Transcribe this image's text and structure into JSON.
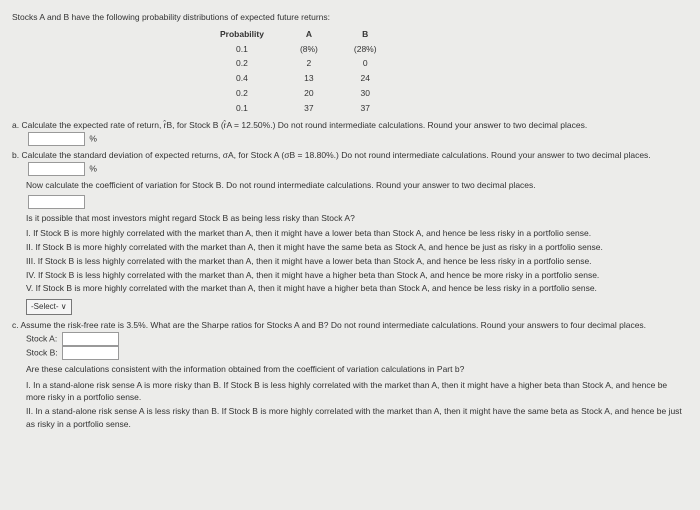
{
  "intro": "Stocks A and B have the following probability distributions of expected future returns:",
  "table": {
    "headers": [
      "Probability",
      "A",
      "B"
    ],
    "rows": [
      [
        "0.1",
        "(8%)",
        "(28%)"
      ],
      [
        "0.2",
        "2",
        "0"
      ],
      [
        "0.4",
        "13",
        "24"
      ],
      [
        "0.2",
        "20",
        "30"
      ],
      [
        "0.1",
        "37",
        "37"
      ]
    ]
  },
  "qa": {
    "text": "a. Calculate the expected rate of return, r̂B, for Stock B (r̂A = 12.50%.) Do not round intermediate calculations. Round your answer to two decimal places.",
    "unit": "%"
  },
  "qb": {
    "text": "b. Calculate the standard deviation of expected returns, σA, for Stock A (σB = 18.80%.) Do not round intermediate calculations. Round your answer to two decimal places.",
    "unit": "%"
  },
  "cv_instruction": "Now calculate the coefficient of variation for Stock B. Do not round intermediate calculations. Round your answer to two decimal places.",
  "risk_question": "Is it possible that most investors might regard Stock B as being less risky than Stock A?",
  "options": {
    "i": "I. If Stock B is more highly correlated with the market than A, then it might have a lower beta than Stock A, and hence be less risky in a portfolio sense.",
    "ii": "II. If Stock B is more highly correlated with the market than A, then it might have the same beta as Stock A, and hence be just as risky in a portfolio sense.",
    "iii": "III. If Stock B is less highly correlated with the market than A, then it might have a lower beta than Stock A, and hence be less risky in a portfolio sense.",
    "iv": "IV. If Stock B is less highly correlated with the market than A, then it might have a higher beta than Stock A, and hence be more risky in a portfolio sense.",
    "v": "V. If Stock B is more highly correlated with the market than A, then it might have a higher beta than Stock A, and hence be less risky in a portfolio sense."
  },
  "select_label": "-Select-",
  "qc": {
    "text": "c. Assume the risk-free rate is 3.5%. What are the Sharpe ratios for Stocks A and B? Do not round intermediate calculations. Round your answers to four decimal places.",
    "stockA": "Stock A:",
    "stockB": "Stock B:"
  },
  "consistency_q": "Are these calculations consistent with the information obtained from the coefficient of variation calculations in Part b?",
  "options2": {
    "i": "I. In a stand-alone risk sense A is more risky than B. If Stock B is less highly correlated with the market than A, then it might have a higher beta than Stock A, and hence be more risky in a portfolio sense.",
    "ii": "II. In a stand-alone risk sense A is less risky than B. If Stock B is more highly correlated with the market than A, then it might have the same beta as Stock A, and hence be just as risky in a portfolio sense."
  }
}
